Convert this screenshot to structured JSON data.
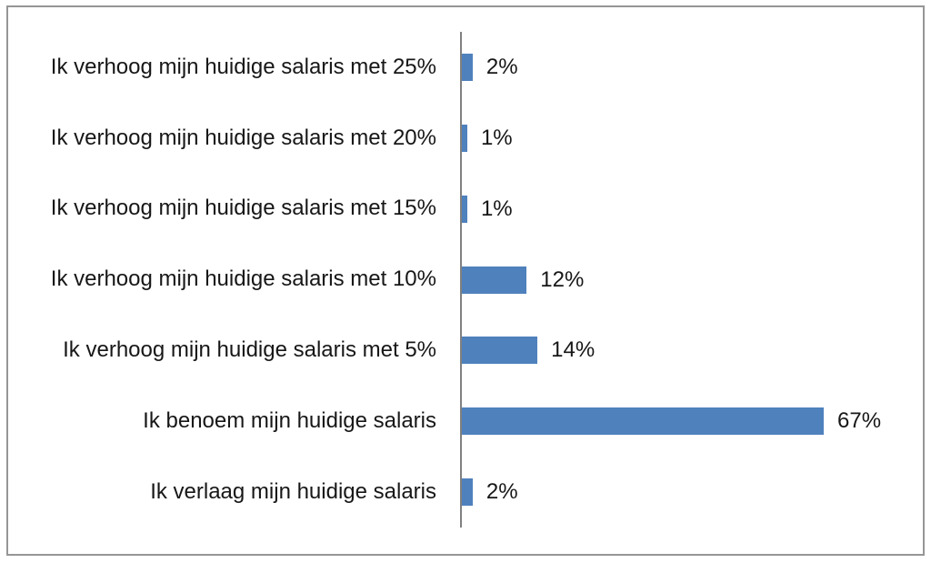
{
  "chart_data": {
    "type": "bar",
    "orientation": "horizontal",
    "title": "",
    "xlabel": "",
    "ylabel": "",
    "categories": [
      "Ik verhoog mijn huidige salaris met 25%",
      "Ik verhoog mijn huidige salaris met 20%",
      "Ik verhoog mijn huidige salaris met 15%",
      "Ik verhoog mijn huidige salaris met 10%",
      "Ik verhoog mijn huidige salaris met 5%",
      "Ik benoem mijn huidige salaris",
      "Ik verlaag mijn huidige salaris"
    ],
    "values": [
      2,
      1,
      1,
      12,
      14,
      67,
      2
    ],
    "value_labels": [
      "2%",
      "1%",
      "1%",
      "12%",
      "14%",
      "67%",
      "2%"
    ],
    "xlim": [
      0,
      85
    ],
    "grid": false,
    "legend": "none",
    "data_labels": "outside-end",
    "colors": {
      "bar": "#4F81BD",
      "axis_line": "#808080",
      "frame_border": "#969696",
      "text": "#171717",
      "background": "#FFFFFF"
    }
  }
}
